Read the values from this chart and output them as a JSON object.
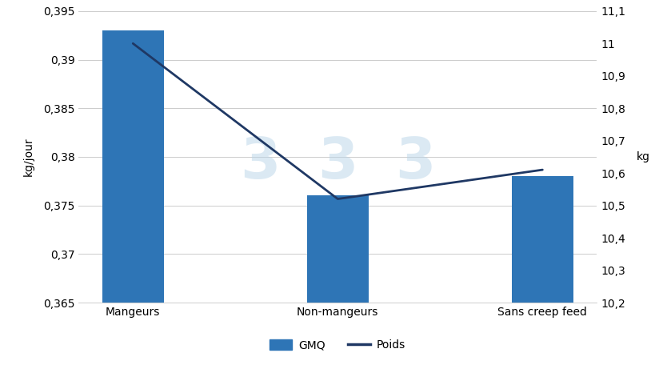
{
  "categories": [
    "Mangeurs",
    "Non-mangeurs",
    "Sans creep feed"
  ],
  "gmq_values": [
    0.393,
    0.376,
    0.378
  ],
  "poids_values": [
    11.0,
    10.52,
    10.61
  ],
  "bar_color": "#2E75B6",
  "line_color": "#1F3864",
  "ylabel_left": "kg/jour",
  "ylabel_right": "kg",
  "ylim_left": [
    0.365,
    0.395
  ],
  "ylim_right": [
    10.2,
    11.1
  ],
  "yticks_left": [
    0.365,
    0.37,
    0.375,
    0.38,
    0.385,
    0.39,
    0.395
  ],
  "ytick_labels_left": [
    "0,365",
    "0,37",
    "0,375",
    "0,38",
    "0,385",
    "0,39",
    "0,395"
  ],
  "yticks_right": [
    10.2,
    10.3,
    10.4,
    10.5,
    10.6,
    10.7,
    10.8,
    10.9,
    11.0,
    11.1
  ],
  "ytick_labels_right": [
    "10,2",
    "10,3",
    "10,4",
    "10,5",
    "10,6",
    "10,7",
    "10,8",
    "10,9",
    "11",
    "11,1"
  ],
  "legend_gmq": "GMQ",
  "legend_poids": "Poids",
  "bg_color": "#FFFFFF",
  "grid_color": "#CCCCCC",
  "bar_width": 0.3,
  "watermark_color": "#B8D4E8",
  "watermark_alpha": 0.5
}
